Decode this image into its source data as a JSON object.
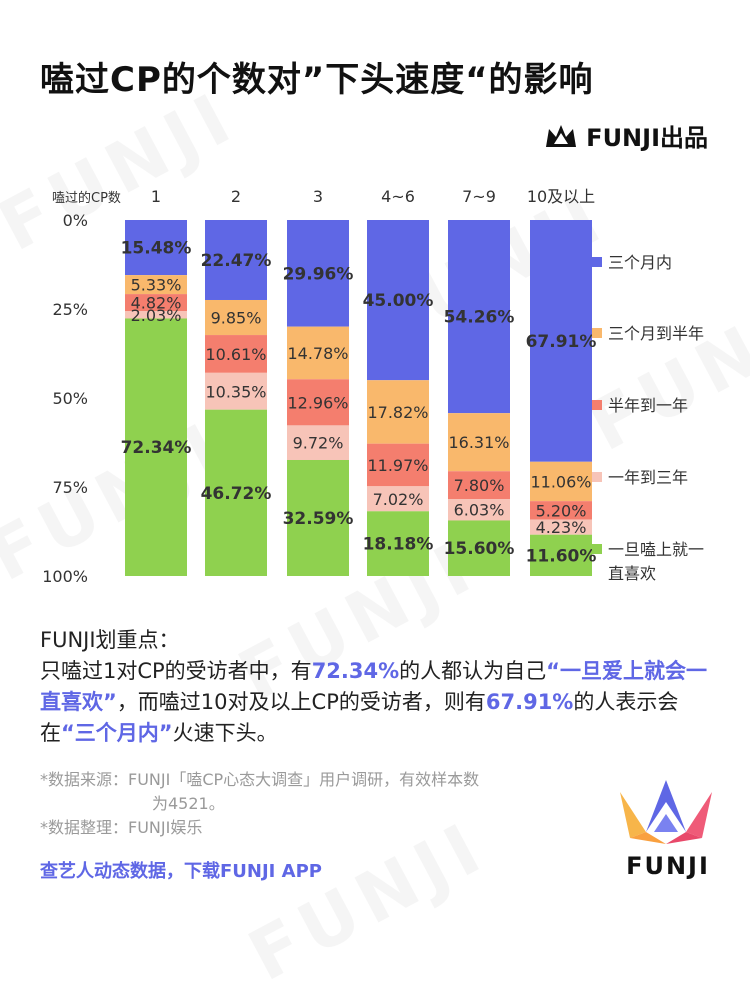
{
  "title": "嗑过CP的个数对”下头速度“的影响",
  "brand": {
    "name": "FUNJI出品",
    "logo_text": "FUNJI",
    "watermark": "FUNJI"
  },
  "colors": {
    "within_3_months": "#5f67e5",
    "3_to_6_months": "#f9b86c",
    "6_to_12_months": "#f47e6e",
    "1_to_3_years": "#f7c4b8",
    "forever": "#8fd14f",
    "accent": "#5f67e5"
  },
  "chart_data": {
    "type": "bar",
    "stacked": true,
    "orientation": "vertical",
    "y_axis_inverted": true,
    "xlabel": "嗑过的CP数",
    "categories": [
      "1",
      "2",
      "3",
      "4~6",
      "7~9",
      "10及以上"
    ],
    "y_ticks": [
      "0%",
      "25%",
      "50%",
      "75%",
      "100%"
    ],
    "ylim": [
      0,
      100
    ],
    "legend_position": "right",
    "series": [
      {
        "name": "三个月内",
        "color": "#5f67e5",
        "values": [
          15.48,
          22.47,
          29.96,
          45.0,
          54.26,
          67.91
        ]
      },
      {
        "name": "三个月到半年",
        "color": "#f9b86c",
        "values": [
          5.33,
          9.85,
          14.78,
          17.82,
          16.31,
          11.06
        ]
      },
      {
        "name": "半年到一年",
        "color": "#f47e6e",
        "values": [
          4.82,
          10.61,
          12.96,
          11.97,
          7.8,
          5.2
        ]
      },
      {
        "name": "一年到三年",
        "color": "#f7c4b8",
        "values": [
          2.03,
          10.35,
          9.72,
          7.02,
          6.03,
          4.23
        ]
      },
      {
        "name": "一旦嗑上就一直喜欢",
        "color": "#8fd14f",
        "values": [
          72.34,
          46.72,
          32.59,
          18.18,
          15.6,
          11.6
        ]
      }
    ],
    "bold_labels": [
      [
        0,
        0
      ],
      [
        0,
        4
      ],
      [
        1,
        0
      ],
      [
        1,
        4
      ],
      [
        2,
        0
      ],
      [
        2,
        4
      ],
      [
        3,
        0
      ],
      [
        3,
        4
      ],
      [
        4,
        0
      ],
      [
        4,
        4
      ],
      [
        5,
        0
      ],
      [
        5,
        4
      ]
    ]
  },
  "summary": {
    "heading": "FUNJI划重点：",
    "p1": "只嗑过1对CP的受访者中，有",
    "h1": "72.34%",
    "p2": "的人都认为自己",
    "h2": "“一旦爱上就会一直喜欢”",
    "p3": "，而嗑过10对及以上CP的受访者，则有",
    "h3": "67.91%",
    "p4": "的人表示会在",
    "h4": "“三个月内”",
    "p5": "火速下头。"
  },
  "notes": {
    "source_line1": "*数据来源：FUNJI「嗑CP心态大调查」用户调研，有效样本数",
    "source_line2": "为4521。",
    "arrange": "*数据整理：FUNJI娱乐"
  },
  "footer": "查艺人动态数据，下载FUNJI APP"
}
